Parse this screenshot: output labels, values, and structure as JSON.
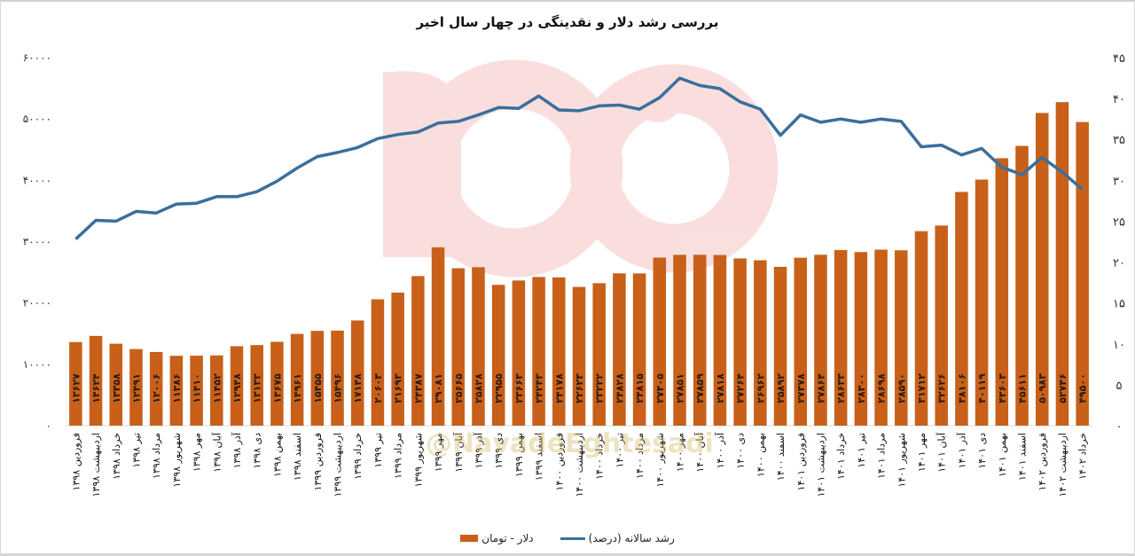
{
  "chart_data": {
    "type": "bar+line",
    "title": "بررسی رشد دلار و نقدینگی در چهار سال اخیر",
    "categories": [
      "فروردین ۱۳۹۸",
      "اردیبهشت ۱۳۹۸",
      "خرداد ۱۳۹۸",
      "تیر ۱۳۹۸",
      "مرداد ۱۳۹۸",
      "شهریور ۱۳۹۸",
      "مهر ۱۳۹۸",
      "آبان ۱۳۹۸",
      "آذر ۱۳۹۸",
      "دی ۱۳۹۸",
      "بهمن ۱۳۹۸",
      "اسفند ۱۳۹۸",
      "فروردین ۱۳۹۹",
      "اردیبهشت ۱۳۹۹",
      "خرداد ۱۳۹۹",
      "تیر ۱۳۹۹",
      "مرداد ۱۳۹۹",
      "شهریور ۱۳۹۹",
      "مهر ۱۳۹۹",
      "آبان ۱۳۹۹",
      "آذر ۱۳۹۹",
      "دی ۱۳۹۹",
      "بهمن ۱۳۹۹",
      "اسفند ۱۳۹۹",
      "فروردین ۱۴۰۰",
      "اردیبهشت ۱۴۰۰",
      "خرداد ۱۴۰۰",
      "تیر ۱۴۰۰",
      "مرداد ۱۴۰۰",
      "شهریور ۱۴۰۰",
      "مهر ۱۴۰۰",
      "آبان ۱۴۰۰",
      "آذر ۱۴۰۰",
      "دی ۱۴۰۰",
      "بهمن ۱۴۰۰",
      "اسفند ۱۴۰۰",
      "فروردین ۱۴۰۱",
      "اردیبهشت ۱۴۰۱",
      "خرداد ۱۴۰۱",
      "تیر ۱۴۰۱",
      "مرداد ۱۴۰۱",
      "شهریور ۱۴۰۱",
      "مهر ۱۴۰۱",
      "آبان ۱۴۰۱",
      "آذر ۱۴۰۱",
      "دی ۱۴۰۱",
      "بهمن ۱۴۰۱",
      "اسفند ۱۴۰۱",
      "فروردین ۱۴۰۲",
      "اردیبهشت ۱۴۰۲",
      "خرداد ۱۴۰۲"
    ],
    "series": [
      {
        "name": "دلار - تومان",
        "type": "bar",
        "axis": "left",
        "color": "#c8601a",
        "values": [
          13627,
          14624,
          13358,
          12491,
          12006,
          11386,
          11410,
          11452,
          12948,
          13133,
          13675,
          14961,
          15455,
          15496,
          17148,
          20603,
          21693,
          24387,
          29081,
          25665,
          25828,
          22955,
          23663,
          24243,
          24178,
          22623,
          23222,
          24828,
          24815,
          27405,
          27851,
          27859,
          27818,
          27264,
          26962,
          25892,
          27378,
          27864,
          28633,
          28300,
          28698,
          28590,
          31712,
          32626,
          38106,
          40119,
          43603,
          45611,
          50983,
          52746,
          49500
        ],
        "labels": [
          "۱۳۶۲۷",
          "۱۴۶۲۴",
          "۱۳۳۵۸",
          "۱۲۴۹۱",
          "۱۲۰۰۶",
          "۱۱۳۸۶",
          "۱۱۴۱۰",
          "۱۱۴۵۲",
          "۱۲۹۴۸",
          "۱۳۱۳۳",
          "۱۳۶۷۵",
          "۱۴۹۶۱",
          "۱۵۴۵۵",
          "۱۵۴۹۶",
          "۱۷۱۴۸",
          "۲۰۶۰۳",
          "۲۱۶۹۳",
          "۲۴۳۸۷",
          "۲۹۰۸۱",
          "۲۵۶۶۵",
          "۲۵۸۲۸",
          "۲۲۹۵۵",
          "۲۳۶۶۳",
          "۲۴۲۴۳",
          "۲۴۱۷۸",
          "۲۲۶۲۳",
          "۲۳۲۲۲",
          "۲۴۸۲۸",
          "۲۴۸۱۵",
          "۲۷۴۰۵",
          "۲۷۸۵۱",
          "۲۷۸۵۹",
          "۲۷۸۱۸",
          "۲۷۲۶۴",
          "۲۶۹۶۲",
          "۲۵۸۹۲",
          "۲۷۳۷۸",
          "۲۷۸۶۴",
          "۲۸۶۳۳",
          "۲۸۳۰۰",
          "۲۸۶۹۸",
          "۲۸۵۹۰",
          "۳۱۷۱۲",
          "۳۲۶۲۶",
          "۳۸۱۰۶",
          "۴۰۱۱۹",
          "۴۳۶۰۳",
          "۴۵۶۱۱",
          "۵۰۹۸۳",
          "۵۲۷۴۶",
          "۴۹۵۰۰"
        ]
      },
      {
        "name": "رشد سالانه (درصد)",
        "type": "line",
        "axis": "right",
        "color": "#3a6f9c",
        "values": [
          22.8,
          25.1,
          25.0,
          26.2,
          26.0,
          27.1,
          27.2,
          28.0,
          28.0,
          28.6,
          29.9,
          31.5,
          32.9,
          33.4,
          34.0,
          35.1,
          35.6,
          35.9,
          37.0,
          37.2,
          38.0,
          38.9,
          38.8,
          40.3,
          38.6,
          38.5,
          39.1,
          39.2,
          38.7,
          40.1,
          42.5,
          41.6,
          41.2,
          39.6,
          38.7,
          35.5,
          38.0,
          37.1,
          37.5,
          37.1,
          37.5,
          37.2,
          34.1,
          34.3,
          33.1,
          33.9,
          31.6,
          30.7,
          32.8,
          31.0,
          28.9
        ]
      }
    ],
    "left_axis": {
      "ylim": [
        0,
        60000
      ],
      "ticks": [
        "۰",
        "۱۰۰۰۰",
        "۲۰۰۰۰",
        "۳۰۰۰۰",
        "۴۰۰۰۰",
        "۵۰۰۰۰",
        "۶۰۰۰۰"
      ]
    },
    "right_axis": {
      "ylim": [
        0,
        45
      ],
      "ticks": [
        "۰",
        "۵",
        "۱۰",
        "۱۵",
        "۲۰",
        "۲۵",
        "۳۰",
        "۳۵",
        "۴۰",
        "۴۵"
      ]
    },
    "xlabel": "",
    "ylabel": "",
    "grid": false,
    "legend_position": "bottom",
    "watermark": "@NavadeEghtesadi"
  },
  "legend": {
    "line_label": "رشد سالانه (درصد)",
    "bar_label": "دلار - تومان"
  }
}
